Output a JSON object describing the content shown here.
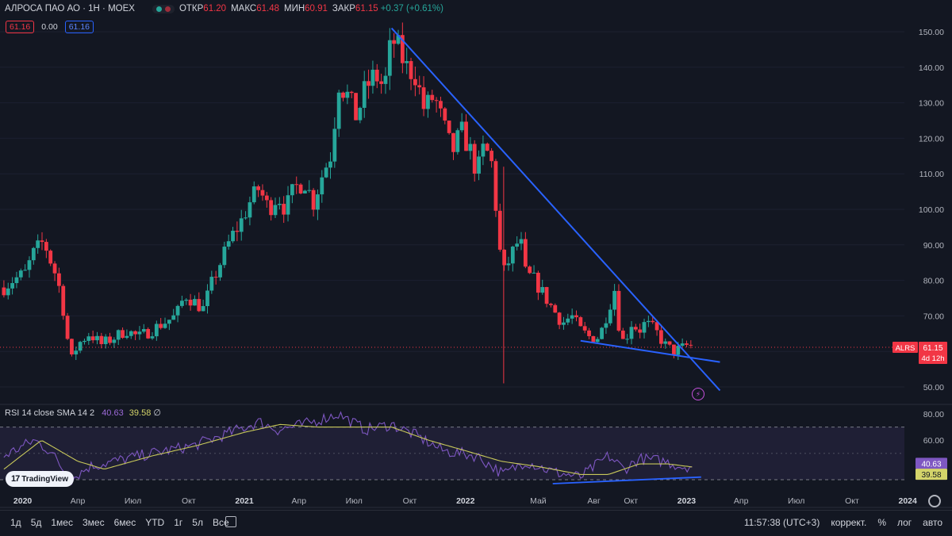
{
  "header": {
    "title": "АЛРОСА ПАО АО · 1Н · MOEX",
    "open_label": "ОТКР",
    "open": "61.20",
    "high_label": "МАКС",
    "high": "61.48",
    "low_label": "МИН",
    "low": "60.91",
    "close_label": "ЗАКР",
    "close": "61.15",
    "change": "+0.37 (+0.61%)",
    "box_sell": "61.16",
    "box_spread": "0.00",
    "box_buy": "61.16"
  },
  "price_axis": {
    "label_values": [
      150,
      140,
      130,
      120,
      110,
      100,
      90,
      80,
      70,
      50
    ],
    "labels": [
      "150.00",
      "140.00",
      "130.00",
      "120.00",
      "110.00",
      "100.00",
      "90.00",
      "80.00",
      "70.00",
      "50.00"
    ]
  },
  "price_badge": {
    "ticker": "ALRS",
    "price": "61.15",
    "countdown": "4d 12h",
    "value": 61.15
  },
  "rsi": {
    "legend_label": "RSI 14 close SMA 14 2",
    "rsi_value": "40.63",
    "sma_value": "39.58",
    "extra": "∅",
    "axis_values": [
      80,
      60
    ],
    "axis_labels": [
      "80.00",
      "60.00"
    ],
    "upper_band": 70,
    "lower_band": 30
  },
  "time_axis": {
    "labels": [
      "2020",
      "Апр",
      "Июл",
      "Окт",
      "2021",
      "Апр",
      "Июл",
      "Окт",
      "2022",
      "Май",
      "Авг",
      "Окт",
      "2023",
      "Апр",
      "Июл",
      "Окт",
      "2024"
    ],
    "bold": [
      "2020",
      "2021",
      "2022",
      "2023",
      "2024"
    ]
  },
  "toolbar": {
    "ranges": [
      "1д",
      "5д",
      "1мес",
      "3мес",
      "6мес",
      "YTD",
      "1г",
      "5л",
      "Все"
    ],
    "time": "11:57:38 (UTC+3)",
    "correct": "коррект.",
    "percent": "%",
    "log": "лог",
    "auto": "авто"
  },
  "logo": "TradingView",
  "icons": [
    "calendar-icon",
    "settings-gear-icon",
    "lightning-alert-icon"
  ],
  "colors": {
    "background": "#131722",
    "up": "#26a69a",
    "down": "#f23645",
    "trendline": "#2962ff",
    "rsi": "#7e57c2",
    "rsi_sma": "#c8c85a"
  },
  "chart_data": {
    "type": "candlestick",
    "title": "АЛРОСА ПАО АО · 1Н · MOEX",
    "price_range": [
      45,
      153
    ],
    "rsi_range": [
      25,
      82
    ],
    "anchor_points": [
      [
        "2019-12-01",
        78
      ],
      [
        "2019-12-15",
        80
      ],
      [
        "2020-01-05",
        82
      ],
      [
        "2020-01-20",
        88
      ],
      [
        "2020-02-05",
        91
      ],
      [
        "2020-02-15",
        86
      ],
      [
        "2020-02-28",
        80
      ],
      [
        "2020-03-10",
        70
      ],
      [
        "2020-03-20",
        57
      ],
      [
        "2020-04-01",
        62
      ],
      [
        "2020-04-20",
        65
      ],
      [
        "2020-05-10",
        62
      ],
      [
        "2020-06-01",
        64
      ],
      [
        "2020-06-20",
        66
      ],
      [
        "2020-07-10",
        64
      ],
      [
        "2020-08-01",
        66
      ],
      [
        "2020-08-20",
        68
      ],
      [
        "2020-09-10",
        70
      ],
      [
        "2020-09-25",
        76
      ],
      [
        "2020-10-10",
        74
      ],
      [
        "2020-10-25",
        72
      ],
      [
        "2020-11-10",
        80
      ],
      [
        "2020-11-25",
        86
      ],
      [
        "2020-12-10",
        92
      ],
      [
        "2020-12-25",
        96
      ],
      [
        "2021-01-10",
        102
      ],
      [
        "2021-01-25",
        106
      ],
      [
        "2021-02-10",
        100
      ],
      [
        "2021-02-25",
        104
      ],
      [
        "2021-03-10",
        100
      ],
      [
        "2021-03-25",
        106
      ],
      [
        "2021-04-10",
        108
      ],
      [
        "2021-04-25",
        102
      ],
      [
        "2021-05-10",
        110
      ],
      [
        "2021-05-25",
        116
      ],
      [
        "2021-06-05",
        136
      ],
      [
        "2021-06-20",
        132
      ],
      [
        "2021-07-05",
        126
      ],
      [
        "2021-07-20",
        134
      ],
      [
        "2021-08-05",
        138
      ],
      [
        "2021-08-20",
        134
      ],
      [
        "2021-09-01",
        148
      ],
      [
        "2021-09-10",
        146
      ],
      [
        "2021-09-25",
        140
      ],
      [
        "2021-10-10",
        138
      ],
      [
        "2021-10-25",
        128
      ],
      [
        "2021-11-10",
        132
      ],
      [
        "2021-11-25",
        124
      ],
      [
        "2021-12-10",
        116
      ],
      [
        "2021-12-25",
        122
      ],
      [
        "2022-01-10",
        116
      ],
      [
        "2022-01-20",
        110
      ],
      [
        "2022-02-01",
        118
      ],
      [
        "2022-02-15",
        112
      ],
      [
        "2022-02-25",
        90
      ],
      [
        "2022-03-05",
        82
      ],
      [
        "2022-03-20",
        88
      ],
      [
        "2022-04-01",
        92
      ],
      [
        "2022-04-10",
        82
      ],
      [
        "2022-04-25",
        80
      ],
      [
        "2022-05-10",
        76
      ],
      [
        "2022-05-25",
        72
      ],
      [
        "2022-06-10",
        68
      ],
      [
        "2022-06-25",
        70
      ],
      [
        "2022-07-10",
        66
      ],
      [
        "2022-07-25",
        64
      ],
      [
        "2022-08-10",
        64
      ],
      [
        "2022-08-25",
        72
      ],
      [
        "2022-09-05",
        78
      ],
      [
        "2022-09-12",
        66
      ],
      [
        "2022-09-20",
        62
      ],
      [
        "2022-10-01",
        68
      ],
      [
        "2022-10-15",
        66
      ],
      [
        "2022-10-25",
        68
      ],
      [
        "2022-11-10",
        66
      ],
      [
        "2022-11-25",
        62
      ],
      [
        "2022-12-10",
        60
      ],
      [
        "2022-12-25",
        61
      ],
      [
        "2023-01-05",
        62
      ],
      [
        "2023-01-12",
        61.15
      ]
    ],
    "rsi_points": [
      [
        "2019-12-01",
        48
      ],
      [
        "2020-01-20",
        60
      ],
      [
        "2020-02-15",
        52
      ],
      [
        "2020-03-20",
        30
      ],
      [
        "2020-04-20",
        40
      ],
      [
        "2020-06-01",
        44
      ],
      [
        "2020-08-01",
        50
      ],
      [
        "2020-10-10",
        56
      ],
      [
        "2020-12-10",
        66
      ],
      [
        "2021-01-25",
        74
      ],
      [
        "2021-02-25",
        68
      ],
      [
        "2021-04-10",
        72
      ],
      [
        "2021-06-05",
        80
      ],
      [
        "2021-07-20",
        68
      ],
      [
        "2021-09-01",
        72
      ],
      [
        "2021-10-10",
        64
      ],
      [
        "2021-11-25",
        52
      ],
      [
        "2022-01-20",
        48
      ],
      [
        "2022-03-05",
        34
      ],
      [
        "2022-04-10",
        44
      ],
      [
        "2022-05-25",
        36
      ],
      [
        "2022-07-10",
        32
      ],
      [
        "2022-08-25",
        48
      ],
      [
        "2022-09-20",
        38
      ],
      [
        "2022-10-15",
        46
      ],
      [
        "2022-11-25",
        44
      ],
      [
        "2022-12-25",
        40
      ],
      [
        "2023-01-12",
        40.63
      ]
    ],
    "sma_points": [
      [
        "2019-12-01",
        38
      ],
      [
        "2020-02-01",
        60
      ],
      [
        "2020-04-01",
        44
      ],
      [
        "2020-05-15",
        38
      ],
      [
        "2020-08-01",
        48
      ],
      [
        "2020-10-15",
        56
      ],
      [
        "2021-01-01",
        66
      ],
      [
        "2021-03-01",
        72
      ],
      [
        "2021-05-01",
        70
      ],
      [
        "2021-07-01",
        70
      ],
      [
        "2021-09-01",
        70
      ],
      [
        "2021-11-01",
        60
      ],
      [
        "2022-01-01",
        52
      ],
      [
        "2022-03-01",
        44
      ],
      [
        "2022-05-01",
        40
      ],
      [
        "2022-07-10",
        34
      ],
      [
        "2022-08-25",
        34
      ],
      [
        "2022-10-15",
        42
      ],
      [
        "2022-12-01",
        42
      ],
      [
        "2023-01-12",
        39.58
      ]
    ],
    "trendlines": [
      {
        "from": [
          "2021-09-01",
          151
        ],
        "to": [
          "2023-02-25",
          49
        ]
      },
      {
        "from": [
          "2022-07-10",
          63
        ],
        "to": [
          "2023-02-25",
          57
        ]
      }
    ],
    "rsi_trendline": {
      "from": [
        "2022-05-25",
        27
      ],
      "to": [
        "2023-01-25",
        32
      ]
    }
  }
}
